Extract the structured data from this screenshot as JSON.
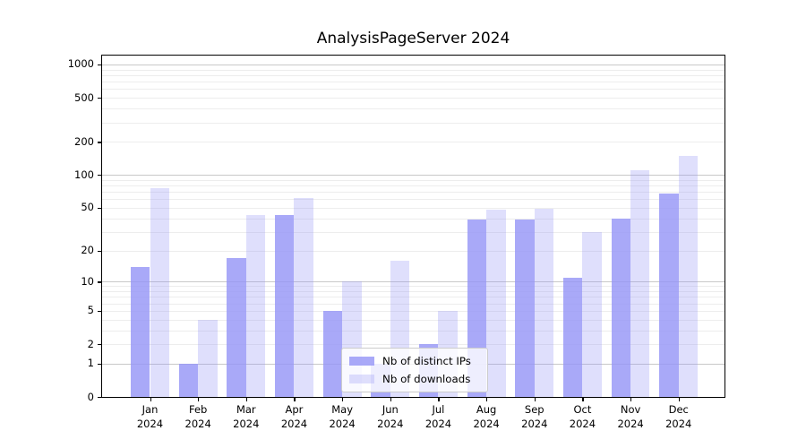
{
  "title": "AnalysisPageServer 2024",
  "chart_data": {
    "type": "bar",
    "title": "AnalysisPageServer 2024",
    "categories": [
      "Jan 2024",
      "Feb 2024",
      "Mar 2024",
      "Apr 2024",
      "May 2024",
      "Jun 2024",
      "Jul 2024",
      "Aug 2024",
      "Sep 2024",
      "Oct 2024",
      "Nov 2024",
      "Dec 2024"
    ],
    "series": [
      {
        "name": "Nb of distinct IPs",
        "values": [
          14,
          1,
          17,
          43,
          5,
          1,
          2,
          39,
          39,
          11,
          40,
          68
        ],
        "color": "#9696f6",
        "alpha": 0.82,
        "effective_color": "#a7a7f8"
      },
      {
        "name": "Nb of downloads",
        "values": [
          76,
          4,
          43,
          62,
          10,
          16,
          5,
          48,
          49,
          30,
          110,
          150
        ],
        "color": "#9696f6",
        "alpha": 0.3,
        "effective_color": "#dcdcfa"
      }
    ],
    "xlabel": "",
    "ylabel": "",
    "yscale": "log1p",
    "ylim": [
      0,
      1250
    ],
    "yticks": [
      0,
      1,
      2,
      5,
      10,
      20,
      50,
      100,
      200,
      500,
      1000
    ],
    "ygrid_major": [
      1,
      10,
      100,
      1000
    ],
    "ygrid_minor": [
      2,
      3,
      4,
      5,
      6,
      7,
      8,
      9,
      20,
      30,
      40,
      50,
      60,
      70,
      80,
      90,
      200,
      300,
      400,
      500,
      600,
      700,
      800,
      900
    ],
    "grid": true,
    "legend_position": "lower center",
    "background_color": "#ffffff",
    "axis_color": "#000000",
    "grid_major_color": "#c9c9c9",
    "grid_minor_color": "#ededed"
  }
}
